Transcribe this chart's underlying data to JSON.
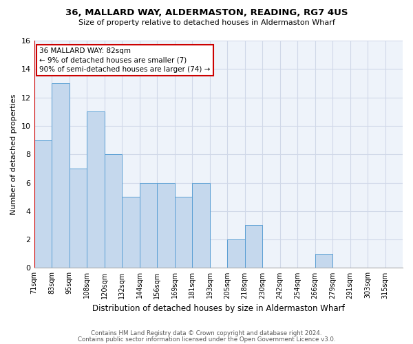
{
  "title1": "36, MALLARD WAY, ALDERMASTON, READING, RG7 4US",
  "title2": "Size of property relative to detached houses in Aldermaston Wharf",
  "xlabel": "Distribution of detached houses by size in Aldermaston Wharf",
  "ylabel": "Number of detached properties",
  "bin_labels": [
    "71sqm",
    "83sqm",
    "95sqm",
    "108sqm",
    "120sqm",
    "132sqm",
    "144sqm",
    "156sqm",
    "169sqm",
    "181sqm",
    "193sqm",
    "205sqm",
    "218sqm",
    "230sqm",
    "242sqm",
    "254sqm",
    "266sqm",
    "279sqm",
    "291sqm",
    "303sqm",
    "315sqm"
  ],
  "bar_values": [
    9,
    13,
    7,
    11,
    8,
    5,
    6,
    6,
    5,
    6,
    0,
    2,
    3,
    0,
    0,
    0,
    1,
    0,
    0,
    0,
    0
  ],
  "bar_color": "#c5d8ed",
  "bar_edge_color": "#5a9fd4",
  "subject_line_color": "#cc0000",
  "annotation_text": "36 MALLARD WAY: 82sqm\n← 9% of detached houses are smaller (7)\n90% of semi-detached houses are larger (74) →",
  "annotation_box_color": "#cc0000",
  "ylim": [
    0,
    16
  ],
  "yticks": [
    0,
    2,
    4,
    6,
    8,
    10,
    12,
    14,
    16
  ],
  "footer1": "Contains HM Land Registry data © Crown copyright and database right 2024.",
  "footer2": "Contains public sector information licensed under the Open Government Licence v3.0.",
  "grid_color": "#d0d8e8",
  "background_color": "#eef3fa"
}
